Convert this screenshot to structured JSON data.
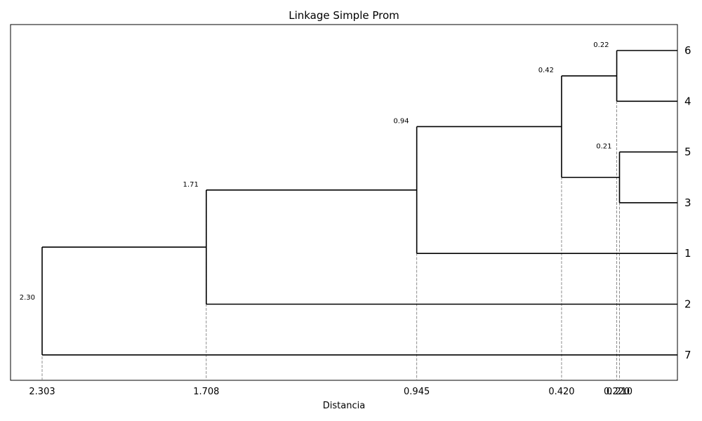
{
  "chart_data": {
    "type": "dendrogram",
    "title": "Linkage Simple Prom",
    "xlabel": "Distancia",
    "ylabel": "",
    "orientation": "right",
    "leaves": [
      "6",
      "4",
      "5",
      "3",
      "1",
      "2",
      "7"
    ],
    "merges": [
      {
        "left": "6",
        "right": "4",
        "distance": 0.22,
        "label": "0.22"
      },
      {
        "left": "5",
        "right": "3",
        "distance": 0.21,
        "label": "0.21"
      },
      {
        "left": "(6,4)",
        "right": "(5,3)",
        "distance": 0.42,
        "label": "0.42"
      },
      {
        "left": "((6,4),(5,3))",
        "right": "1",
        "distance": 0.945,
        "label": "0.94"
      },
      {
        "left": "(((6,4),(5,3)),1)",
        "right": "2",
        "distance": 1.708,
        "label": "1.71"
      },
      {
        "left": "((((6,4),(5,3)),1),2)",
        "right": "7",
        "distance": 2.303,
        "label": "2.30"
      }
    ],
    "x_ticks": [
      {
        "value": 2.303,
        "label": "2.303"
      },
      {
        "value": 1.708,
        "label": "1.708"
      },
      {
        "value": 0.945,
        "label": "0.945"
      },
      {
        "value": 0.42,
        "label": "0.420"
      },
      {
        "value": 0.22,
        "label": "0.220"
      },
      {
        "value": 0.21,
        "label": "0.210"
      }
    ],
    "xlim": [
      2.42,
      0.0
    ],
    "grid": false,
    "guide_lines": "dashed-vertical-at-merges"
  }
}
